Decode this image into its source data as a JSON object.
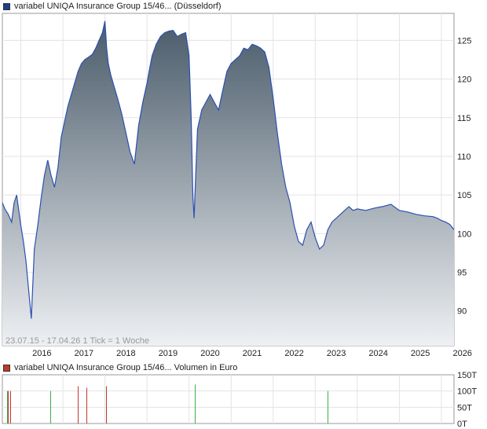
{
  "price_chart": {
    "legend": "variabel UNIQA Insurance Group 15/46... (Düsseldorf)",
    "legend_color": "#1f3d8f",
    "info": "23.07.15 - 17.04.26   1 Tick = 1 Woche",
    "line_color": "#2b50b0",
    "fill_top_color": "#4a5b6a",
    "fill_bottom_color": "#eef0f3"
  },
  "volume_chart": {
    "legend": "variabel UNIQA Insurance Group 15/46... Volumen in Euro",
    "legend_color": "#c0392b",
    "up_color": "#3cb043",
    "down_color": "#c0392b"
  },
  "chart_data": [
    {
      "type": "area",
      "x_ticks": [
        "2016",
        "2017",
        "2018",
        "2019",
        "2020",
        "2021",
        "2022",
        "2023",
        "2024",
        "2025",
        "2026"
      ],
      "y_ticks": [
        90,
        95,
        100,
        105,
        110,
        115,
        120,
        125
      ],
      "ylim": [
        85.5,
        128.5
      ],
      "xlim": [
        2015.56,
        2026.3
      ],
      "grid": true,
      "series": [
        {
          "x": [
            2015.56,
            2015.62,
            2015.7,
            2015.78,
            2015.84,
            2015.9,
            2016.0,
            2016.06,
            2016.12,
            2016.18,
            2016.25,
            2016.32,
            2016.4,
            2016.48,
            2016.56,
            2016.64,
            2016.72,
            2016.8,
            2016.88,
            2016.96,
            2017.04,
            2017.12,
            2017.2,
            2017.28,
            2017.36,
            2017.44,
            2017.52,
            2017.6,
            2017.7,
            2017.78,
            2017.86,
            2017.94,
            2018.0,
            2018.04,
            2018.08,
            2018.14,
            2018.22,
            2018.3,
            2018.4,
            2018.5,
            2018.6,
            2018.7,
            2018.8,
            2018.9,
            2019.0,
            2019.05,
            2019.12,
            2019.22,
            2019.32,
            2019.42,
            2019.52,
            2019.62,
            2019.72,
            2019.82,
            2019.92,
            2020.0,
            2020.05,
            2020.09,
            2020.12,
            2020.16,
            2020.2,
            2020.3,
            2020.4,
            2020.5,
            2020.6,
            2020.7,
            2020.8,
            2020.9,
            2021.0,
            2021.1,
            2021.2,
            2021.3,
            2021.4,
            2021.5,
            2021.6,
            2021.7,
            2021.8,
            2021.9,
            2022.0,
            2022.1,
            2022.2,
            2022.3,
            2022.4,
            2022.5,
            2022.6,
            2022.7,
            2022.8,
            2022.9,
            2023.0,
            2023.1,
            2023.2,
            2023.3,
            2023.4,
            2023.5,
            2023.6,
            2023.7,
            2023.8,
            2023.9,
            2024.0,
            2024.2,
            2024.4,
            2024.6,
            2024.8,
            2025.0,
            2025.2,
            2025.4,
            2025.6,
            2025.8,
            2025.9,
            2026.0,
            2026.1,
            2026.2,
            2026.3
          ],
          "y": [
            104.0,
            103.2,
            102.5,
            101.5,
            104.0,
            105.0,
            101.0,
            99.0,
            96.5,
            93.0,
            89.0,
            98.0,
            101.0,
            104.5,
            107.5,
            109.5,
            107.5,
            106.0,
            108.5,
            112.5,
            114.5,
            116.5,
            118.0,
            119.5,
            121.0,
            122.0,
            122.5,
            122.8,
            123.2,
            124.0,
            125.0,
            126.0,
            127.5,
            124.0,
            122.0,
            120.5,
            119.0,
            117.5,
            115.5,
            113.0,
            110.5,
            109.0,
            114.0,
            117.0,
            119.5,
            121.0,
            123.0,
            124.5,
            125.5,
            126.0,
            126.2,
            126.3,
            125.5,
            125.8,
            126.0,
            123.0,
            115.0,
            105.0,
            102.0,
            108.0,
            113.5,
            116.0,
            117.0,
            118.0,
            117.0,
            116.0,
            118.5,
            121.0,
            122.0,
            122.5,
            123.0,
            124.0,
            123.8,
            124.5,
            124.3,
            124.0,
            123.5,
            121.5,
            117.5,
            113.0,
            109.0,
            106.0,
            104.0,
            101.0,
            99.0,
            98.5,
            100.5,
            101.5,
            99.5,
            98.0,
            98.5,
            100.5,
            101.5,
            102.0,
            102.5,
            103.0,
            103.5,
            103.0,
            103.2,
            103.0,
            103.3,
            103.5,
            103.8,
            103.0,
            102.8,
            102.5,
            102.3,
            102.2,
            102.0,
            101.7,
            101.5,
            101.2,
            100.5
          ]
        }
      ]
    },
    {
      "type": "bar",
      "y_ticks": [
        "0T",
        "50T",
        "100T",
        "150T"
      ],
      "ylim": [
        0,
        150
      ],
      "bars": [
        {
          "x": 2015.67,
          "value": 100,
          "direction": "up"
        },
        {
          "x": 2015.7,
          "value": 100,
          "direction": "down"
        },
        {
          "x": 2015.74,
          "value": 100,
          "direction": "down"
        },
        {
          "x": 2016.7,
          "value": 100,
          "direction": "up"
        },
        {
          "x": 2017.36,
          "value": 115,
          "direction": "down"
        },
        {
          "x": 2017.56,
          "value": 110,
          "direction": "down"
        },
        {
          "x": 2018.03,
          "value": 115,
          "direction": "down"
        },
        {
          "x": 2020.14,
          "value": 120,
          "direction": "up"
        },
        {
          "x": 2023.29,
          "value": 100,
          "direction": "up"
        }
      ]
    }
  ]
}
